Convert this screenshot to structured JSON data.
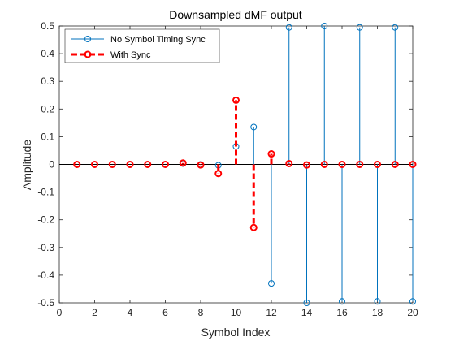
{
  "chart_data": {
    "type": "stem",
    "title": "Downsampled dMF output",
    "xlabel": "Symbol Index",
    "ylabel": "Amplitude",
    "xlim": [
      0,
      20
    ],
    "ylim": [
      -0.5,
      0.5
    ],
    "x_ticks": [
      "0",
      "2",
      "4",
      "6",
      "8",
      "10",
      "12",
      "14",
      "16",
      "18",
      "20"
    ],
    "y_ticks": [
      "0.5",
      "0.4",
      "0.3",
      "0.2",
      "0.1",
      "0",
      "-0.1",
      "-0.2",
      "-0.3",
      "-0.4",
      "-0.5"
    ],
    "legend_position": "top-left",
    "series": [
      {
        "name": "No Symbol Timing Sync",
        "color": "#0072BD",
        "style": "solid thin stem, open circle markers",
        "x": [
          1,
          2,
          3,
          4,
          5,
          6,
          7,
          8,
          9,
          10,
          11,
          12,
          13,
          14,
          15,
          16,
          17,
          18,
          19,
          20
        ],
        "values": [
          0,
          0,
          0,
          0,
          0,
          0,
          0.003,
          0,
          -0.003,
          0.065,
          0.135,
          -0.43,
          0.495,
          -0.5,
          0.5,
          -0.495,
          0.495,
          -0.495,
          0.495,
          -0.495
        ]
      },
      {
        "name": "With Sync",
        "color": "#FF0000",
        "style": "thick dashed stem, bold open circle markers",
        "x": [
          1,
          2,
          3,
          4,
          5,
          6,
          7,
          8,
          9,
          10,
          11,
          12,
          13,
          14,
          15,
          16,
          17,
          18,
          19,
          20
        ],
        "values": [
          0,
          0,
          0,
          0,
          0,
          0,
          0.005,
          -0.002,
          -0.033,
          0.232,
          -0.228,
          0.038,
          0.003,
          -0.002,
          0,
          0,
          0,
          0,
          0,
          0
        ]
      }
    ]
  }
}
